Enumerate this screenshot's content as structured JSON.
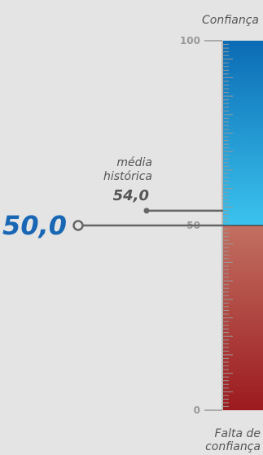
{
  "chart_data": {
    "type": "gauge",
    "top_label": "Confiança",
    "bottom_label": [
      "Falta de",
      "confiança"
    ],
    "ylim": [
      0,
      100
    ],
    "ticks": [
      0,
      50,
      100
    ],
    "current": {
      "value": 50.0,
      "label": "50,0"
    },
    "historical": {
      "value": 54.0,
      "label": "54,0",
      "caption": [
        "média",
        "histórica"
      ]
    }
  },
  "colors": {
    "confidence_top": "#0b6bb4",
    "confidence_bottom": "#3bc3ee",
    "pessimism_top": "#c27062",
    "pessimism_bottom": "#9c1a1e",
    "current_value": "#1866b4",
    "marker_line": "#666666",
    "text_gray": "#555555",
    "tick_gray": "#999999"
  }
}
